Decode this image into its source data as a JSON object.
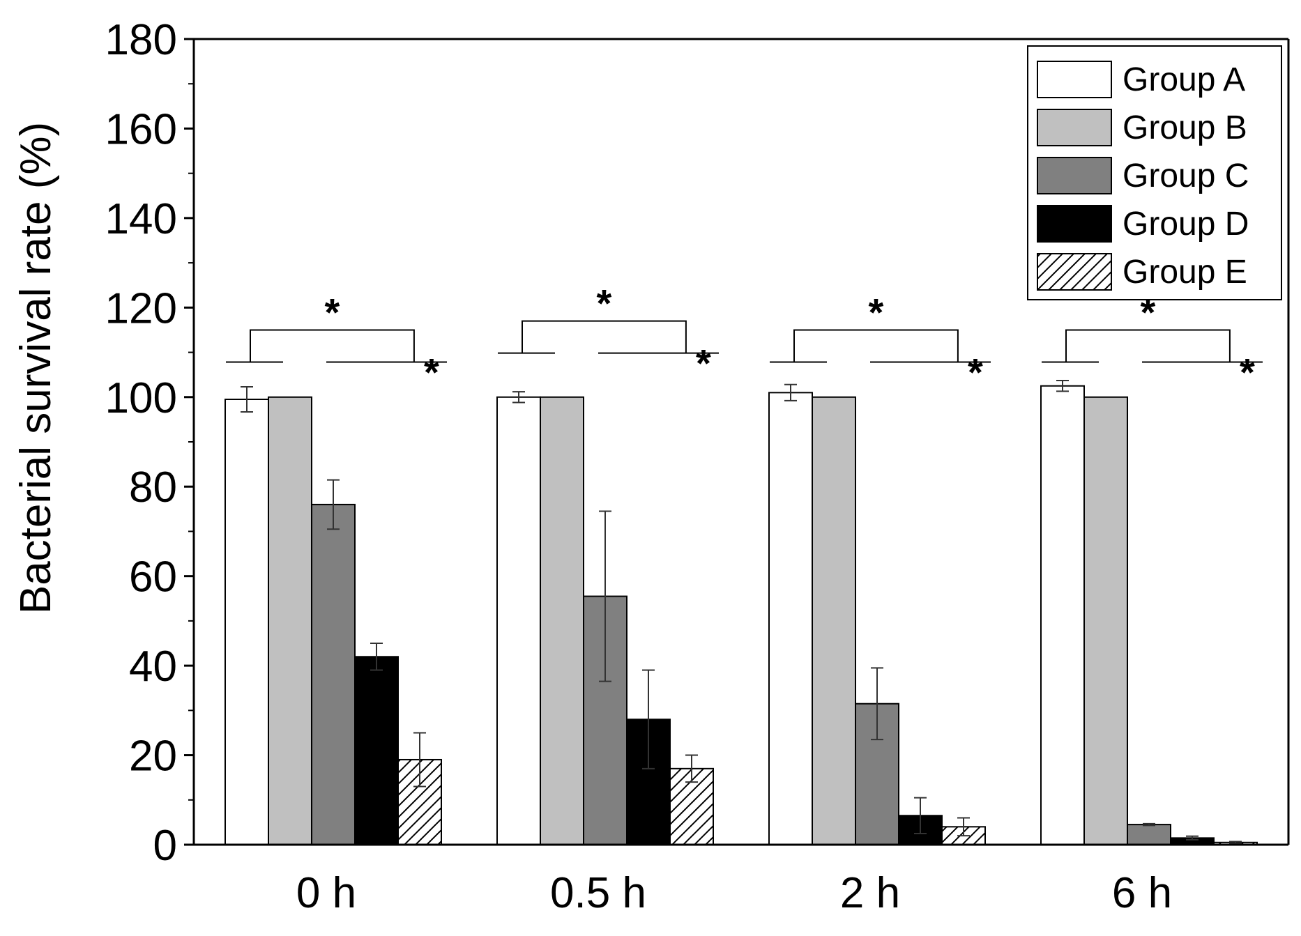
{
  "chart_data": {
    "type": "bar",
    "ylabel": "Bacterial survival rate (%)",
    "xlabel": "",
    "ylim": [
      0,
      180
    ],
    "yticks": [
      0,
      20,
      40,
      60,
      80,
      100,
      120,
      140,
      160,
      180
    ],
    "categories": [
      "0 h",
      "0.5 h",
      "2 h",
      "6 h"
    ],
    "series": [
      {
        "name": "Group A",
        "fill": "#ffffff",
        "pattern": "none",
        "values": [
          99.5,
          100,
          101,
          102.5
        ],
        "errors": [
          2.8,
          1.2,
          1.8,
          1.2
        ]
      },
      {
        "name": "Group B",
        "fill": "#c0c0c0",
        "pattern": "none",
        "values": [
          100,
          100,
          100,
          100
        ],
        "errors": [
          0,
          0,
          0,
          0
        ]
      },
      {
        "name": "Group C",
        "fill": "#808080",
        "pattern": "none",
        "values": [
          76,
          55.5,
          31.5,
          4.5
        ],
        "errors": [
          5.5,
          19,
          8,
          0.2
        ]
      },
      {
        "name": "Group D",
        "fill": "#000000",
        "pattern": "none",
        "values": [
          42,
          28,
          6.5,
          1.5
        ],
        "errors": [
          3,
          11,
          4,
          0.4
        ]
      },
      {
        "name": "Group E",
        "fill": "#ffffff",
        "pattern": "hatch",
        "values": [
          19,
          17,
          4,
          0.5
        ],
        "errors": [
          6,
          3,
          2,
          0.2
        ]
      }
    ],
    "significance": {
      "label": "*",
      "bracket_heights": [
        115,
        117,
        115,
        115
      ]
    },
    "legend": {
      "position": "top-right",
      "frame": true
    },
    "grid": false
  }
}
